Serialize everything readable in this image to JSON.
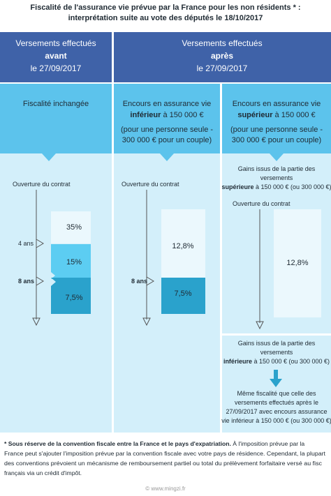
{
  "header": {
    "title": [
      "Fiscalité de l'assurance vie prévue par la France pour les non résidents * :",
      "interprétation suite au vote des députés le 18/10/2017"
    ]
  },
  "columns": {
    "before": {
      "lines": [
        "Versements effectués",
        "avant",
        "le 27/09/2017"
      ]
    },
    "after": {
      "lines": [
        "Versements effectués",
        "après",
        "le 27/09/2017"
      ]
    }
  },
  "subheaders": [
    {
      "lines": [
        "Fiscalité inchangée"
      ]
    },
    {
      "line1": "Encours en assurance vie",
      "bold": "inférieur",
      "rest": " à 150 000 €",
      "line3": "(pour une personne seule -",
      "line4": "300 000 € pour un couple)"
    },
    {
      "line1": "Encours en assurance vie",
      "bold": "supérieur",
      "rest": " à 150 000 €",
      "line3": "(pour une personne seule -",
      "line4": "300 000 € pour un couple)"
    }
  ],
  "panels": [
    {
      "start": "Ouverture du contrat",
      "mark1": "4 ans",
      "mark2": "8 ans",
      "rates": [
        "35%",
        "15%",
        "7,5%"
      ]
    },
    {
      "start": "Ouverture du contrat",
      "mark2": "8 ans",
      "rates": [
        "12,8%",
        "7,5%"
      ]
    },
    {
      "top": {
        "line1": "Gains issus de la partie des",
        "line2": "versements",
        "bold": "supérieure",
        "rest": " à 150 000 € (ou 300 000 €)",
        "start": "Ouverture du contrat",
        "rate": "12,8%"
      },
      "bottom": {
        "line1": "Gains issus de la partie des",
        "line2": "versements",
        "bold": "inférieure",
        "rest": " à 150 000 € (ou 300 000 €)",
        "result": [
          "Même fiscalité que celle des",
          "versements effectués après le",
          "27/09/2017 avec encours assurance",
          "vie inférieur à 150 000 € (ou 300 000 €)"
        ]
      }
    }
  ],
  "footnote": {
    "bold": "* Sous réserve de la convention fiscale entre la France et le pays d'expatriation.",
    "lines": [
      " À l'imposition prévue par la",
      "France peut s'ajouter l'imposition prévue par la convention fiscale avec votre pays de résidence. Cependant, la plupart",
      "des conventions prévoient un mécanisme de remboursement partiel ou total du prélèvement forfaitaire versé au fisc",
      "français via un crédit d'impôt."
    ]
  },
  "footer": "© www.mingzi.fr"
}
